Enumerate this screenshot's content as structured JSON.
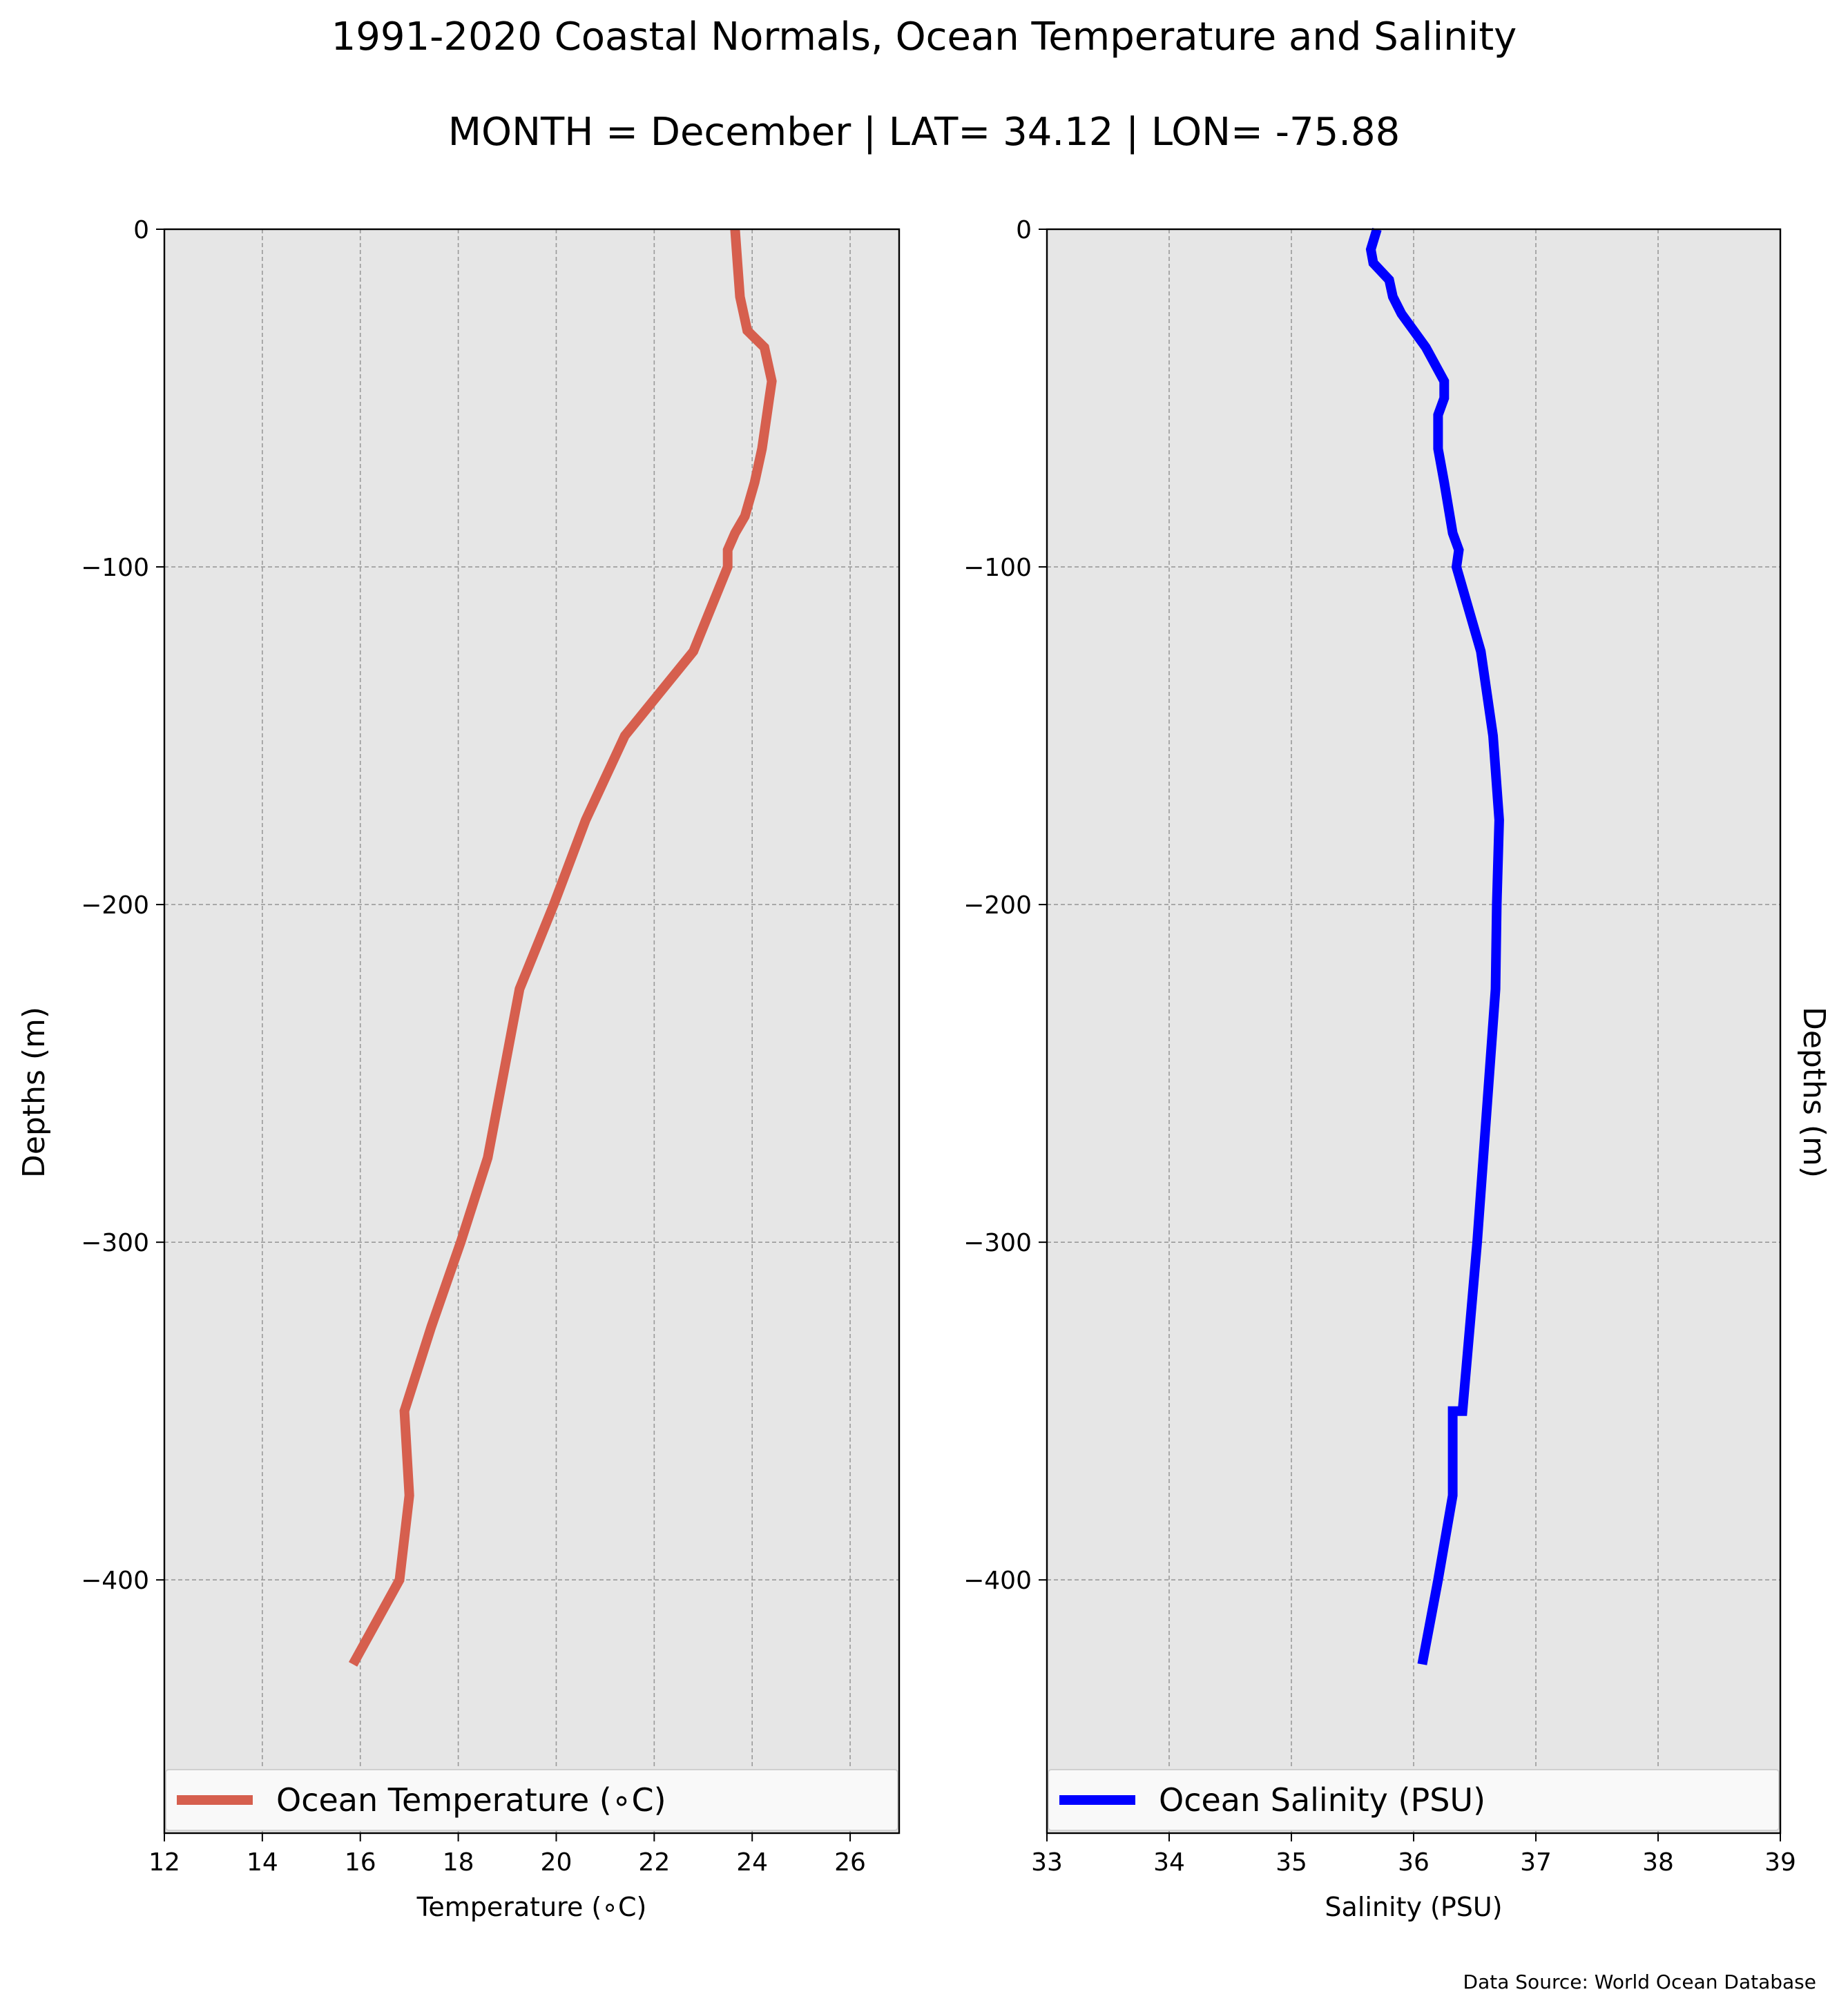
{
  "title": "1991-2020 Coastal Normals, Ocean Temperature and Salinity",
  "subtitle": "MONTH = December | LAT= 34.12 | LON= -75.88",
  "source": "Data Source: World Ocean Database",
  "chart_data": [
    {
      "type": "line",
      "xlabel": "Temperature (∘C)",
      "ylabel": "Depths (m)",
      "xlim": [
        12,
        27
      ],
      "ylim": [
        -475,
        0
      ],
      "xticks": [
        12,
        14,
        16,
        18,
        20,
        22,
        24,
        26
      ],
      "yticks": [
        0,
        -100,
        -200,
        -300,
        -400
      ],
      "ytick_labels": [
        "0",
        "−100",
        "−200",
        "−300",
        "−400"
      ],
      "grid": true,
      "legend_position": "bottom",
      "legend_label": "Ocean Temperature (∘C)",
      "color": "#d65f4e",
      "series": [
        {
          "name": "Ocean Temperature (∘C)",
          "points": [
            {
              "x": 23.65,
              "y": 0
            },
            {
              "x": 23.7,
              "y": -10
            },
            {
              "x": 23.75,
              "y": -20
            },
            {
              "x": 23.9,
              "y": -30
            },
            {
              "x": 24.25,
              "y": -35
            },
            {
              "x": 24.4,
              "y": -45
            },
            {
              "x": 24.35,
              "y": -50
            },
            {
              "x": 24.3,
              "y": -55
            },
            {
              "x": 24.2,
              "y": -65
            },
            {
              "x": 24.05,
              "y": -75
            },
            {
              "x": 23.85,
              "y": -85
            },
            {
              "x": 23.65,
              "y": -90
            },
            {
              "x": 23.5,
              "y": -95
            },
            {
              "x": 23.5,
              "y": -97
            },
            {
              "x": 23.5,
              "y": -100
            },
            {
              "x": 22.8,
              "y": -125
            },
            {
              "x": 21.4,
              "y": -150
            },
            {
              "x": 20.6,
              "y": -175
            },
            {
              "x": 19.95,
              "y": -200
            },
            {
              "x": 19.25,
              "y": -225
            },
            {
              "x": 18.6,
              "y": -275
            },
            {
              "x": 18.05,
              "y": -300
            },
            {
              "x": 17.45,
              "y": -325
            },
            {
              "x": 16.9,
              "y": -350
            },
            {
              "x": 17.0,
              "y": -375
            },
            {
              "x": 16.8,
              "y": -400
            },
            {
              "x": 15.85,
              "y": -425
            }
          ]
        }
      ]
    },
    {
      "type": "line",
      "xlabel": "Salinity (PSU)",
      "ylabel": "Depths (m)",
      "xlim": [
        33,
        39
      ],
      "ylim": [
        -475,
        0
      ],
      "xticks": [
        33,
        34,
        35,
        36,
        37,
        38,
        39
      ],
      "yticks": [
        0,
        -100,
        -200,
        -300,
        -400
      ],
      "ytick_labels": [
        "0",
        "−100",
        "−200",
        "−300",
        "−400"
      ],
      "grid": true,
      "legend_position": "bottom",
      "legend_label": "Ocean Salinity (PSU)",
      "color": "#0000ff",
      "series": [
        {
          "name": "Ocean Salinity (PSU)",
          "points": [
            {
              "x": 35.7,
              "y": 0
            },
            {
              "x": 35.65,
              "y": -6
            },
            {
              "x": 35.67,
              "y": -10
            },
            {
              "x": 35.8,
              "y": -15
            },
            {
              "x": 35.83,
              "y": -20
            },
            {
              "x": 35.9,
              "y": -25
            },
            {
              "x": 36.0,
              "y": -30
            },
            {
              "x": 36.1,
              "y": -35
            },
            {
              "x": 36.25,
              "y": -45
            },
            {
              "x": 36.25,
              "y": -50
            },
            {
              "x": 36.2,
              "y": -55
            },
            {
              "x": 36.2,
              "y": -65
            },
            {
              "x": 36.25,
              "y": -75
            },
            {
              "x": 36.32,
              "y": -90
            },
            {
              "x": 36.37,
              "y": -95
            },
            {
              "x": 36.35,
              "y": -100
            },
            {
              "x": 36.55,
              "y": -125
            },
            {
              "x": 36.65,
              "y": -150
            },
            {
              "x": 36.7,
              "y": -175
            },
            {
              "x": 36.68,
              "y": -200
            },
            {
              "x": 36.67,
              "y": -225
            },
            {
              "x": 36.57,
              "y": -275
            },
            {
              "x": 36.52,
              "y": -300
            },
            {
              "x": 36.4,
              "y": -350
            },
            {
              "x": 36.32,
              "y": -350
            },
            {
              "x": 36.32,
              "y": -375
            },
            {
              "x": 36.2,
              "y": -400
            },
            {
              "x": 36.07,
              "y": -425
            }
          ]
        }
      ]
    }
  ]
}
